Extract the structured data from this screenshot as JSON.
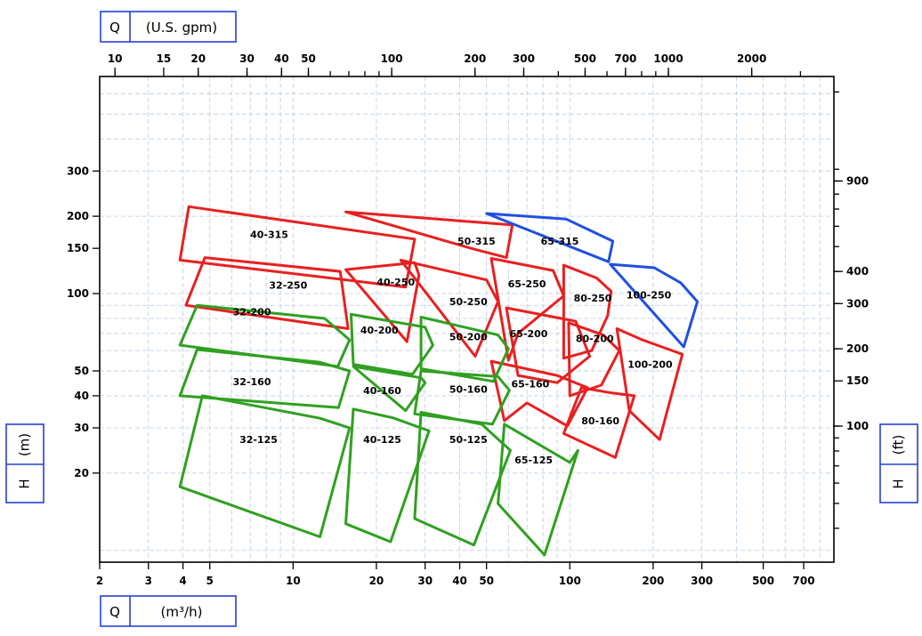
{
  "chart_data": {
    "type": "performance_range_chart",
    "title": "",
    "x_scale": "log",
    "y_scale": "log",
    "xlim": [
      2,
      900
    ],
    "ylim": [
      9,
      700
    ],
    "grid": true,
    "axes": {
      "bottom": {
        "symbol": "Q",
        "unit": "(m³/h)",
        "ticks": [
          2,
          3,
          4,
          5,
          10,
          20,
          30,
          40,
          50,
          100,
          200,
          300,
          500,
          700
        ]
      },
      "top": {
        "symbol": "Q",
        "unit": "(U.S. gpm)",
        "ticks": [
          10,
          15,
          20,
          30,
          40,
          50,
          100,
          200,
          300,
          500,
          700,
          1000,
          2000
        ]
      },
      "left": {
        "symbol": "H",
        "unit": "(m)",
        "ticks": [
          20,
          30,
          40,
          50,
          100,
          150,
          200,
          300
        ]
      },
      "right": {
        "symbol": "H",
        "unit": "(ft)",
        "ticks": [
          100,
          150,
          200,
          300,
          400,
          900
        ]
      }
    },
    "series": [
      {
        "color": "#e82020",
        "regions": [
          {
            "label": "40-315",
            "label_at": [
              8.2,
              170
            ],
            "corners": [
              [
                3.9,
                135
              ],
              [
                4.2,
                218
              ],
              [
                27.5,
                163
              ],
              [
                25.5,
                106
              ]
            ]
          },
          {
            "label": "50-315",
            "label_at": [
              46,
              160
            ],
            "corners": [
              [
                15.5,
                208
              ],
              [
                62,
                185
              ],
              [
                59,
                138
              ],
              [
                44,
                150
              ]
            ]
          },
          {
            "label": "32-250",
            "label_at": [
              9.6,
              108
            ],
            "corners": [
              [
                4.1,
                90
              ],
              [
                4.8,
                138
              ],
              [
                14.8,
                122
              ],
              [
                15.8,
                73
              ]
            ]
          },
          {
            "label": "40-250",
            "label_at": [
              23.5,
              111
            ],
            "corners": [
              [
                15.5,
                124
              ],
              [
                27.5,
                132
              ],
              [
                28.5,
                118
              ],
              [
                25.8,
                65
              ]
            ]
          },
          {
            "label": "50-250",
            "label_at": [
              43,
              93
            ],
            "corners": [
              [
                24.5,
                135
              ],
              [
                50,
                113
              ],
              [
                55,
                93
              ],
              [
                45.5,
                57
              ]
            ]
          },
          {
            "label": "65-250",
            "label_at": [
              70,
              109
            ],
            "corners": [
              [
                52,
                137
              ],
              [
                87,
                123
              ],
              [
                95,
                98
              ],
              [
                65,
                70
              ],
              [
                60,
                55
              ]
            ]
          },
          {
            "label": "80-250",
            "label_at": [
              121,
              96
            ],
            "corners": [
              [
                95,
                129
              ],
              [
                125,
                115
              ],
              [
                141,
                102
              ],
              [
                137,
                82
              ],
              [
                120,
                60
              ],
              [
                95,
                56
              ]
            ]
          },
          {
            "label": "65-200",
            "label_at": [
              71,
              70
            ],
            "corners": [
              [
                59,
                88
              ],
              [
                105,
                78
              ],
              [
                118,
                57
              ],
              [
                90,
                45
              ],
              [
                65,
                48
              ]
            ]
          },
          {
            "label": "80-200",
            "label_at": [
              123,
              67
            ],
            "corners": [
              [
                99,
                77
              ],
              [
                132,
                69
              ],
              [
                151,
                60
              ],
              [
                130,
                44
              ],
              [
                100,
                40
              ]
            ]
          },
          {
            "label": "100-200",
            "label_at": [
              195,
              53
            ],
            "corners": [
              [
                148,
                73
              ],
              [
                183,
                66
              ],
              [
                255,
                58
              ],
              [
                211,
                27
              ],
              [
                164,
                35
              ]
            ]
          },
          {
            "label": "65-160",
            "label_at": [
              72,
              44.5
            ],
            "corners": [
              [
                52,
                54.5
              ],
              [
                90,
                48
              ],
              [
                116,
                43
              ],
              [
                98,
                30.5
              ],
              [
                70,
                37.5
              ],
              [
                58,
                32
              ]
            ]
          },
          {
            "label": "80-160",
            "label_at": [
              129,
              32
            ],
            "corners": [
              [
                110,
                43
              ],
              [
                142,
                41
              ],
              [
                171,
                40
              ],
              [
                146,
                23
              ],
              [
                95,
                28.5
              ]
            ]
          }
        ]
      },
      {
        "color": "#2050e0",
        "regions": [
          {
            "label": "65-315",
            "label_at": [
              92,
              160
            ],
            "corners": [
              [
                50,
                205
              ],
              [
                97,
                195
              ],
              [
                143,
                160
              ],
              [
                138,
                133
              ]
            ]
          },
          {
            "label": "100-250",
            "label_at": [
              193,
              99
            ],
            "corners": [
              [
                140,
                130
              ],
              [
                202,
                126
              ],
              [
                252,
                110
              ],
              [
                289,
                93
              ],
              [
                258,
                62
              ]
            ]
          }
        ]
      },
      {
        "color": "#30a020",
        "regions": [
          {
            "label": "32-200",
            "label_at": [
              7.1,
              85
            ],
            "corners": [
              [
                3.9,
                63
              ],
              [
                4.5,
                90
              ],
              [
                13,
                80
              ],
              [
                16,
                66
              ],
              [
                14.5,
                52
              ]
            ]
          },
          {
            "label": "40-200",
            "label_at": [
              20.5,
              72
            ],
            "corners": [
              [
                16.2,
                83
              ],
              [
                30,
                74
              ],
              [
                32,
                63
              ],
              [
                27,
                48.5
              ],
              [
                16.5,
                53
              ]
            ]
          },
          {
            "label": "50-200",
            "label_at": [
              43,
              68
            ],
            "corners": [
              [
                29,
                81
              ],
              [
                55,
                69
              ],
              [
                60,
                61
              ],
              [
                53,
                45.5
              ],
              [
                29,
                51
              ]
            ]
          },
          {
            "label": "32-160",
            "label_at": [
              7.1,
              45.5
            ],
            "corners": [
              [
                3.9,
                40
              ],
              [
                4.5,
                60.5
              ],
              [
                12.5,
                54
              ],
              [
                16,
                50
              ],
              [
                14.6,
                36
              ]
            ]
          },
          {
            "label": "40-160",
            "label_at": [
              21,
              42
            ],
            "corners": [
              [
                16.5,
                52
              ],
              [
                29,
                47
              ],
              [
                30,
                45
              ],
              [
                25.5,
                35
              ]
            ]
          },
          {
            "label": "50-160",
            "label_at": [
              43,
              42.5
            ],
            "corners": [
              [
                29,
                50
              ],
              [
                55,
                47.5
              ],
              [
                60.5,
                42
              ],
              [
                52.5,
                31
              ],
              [
                27.5,
                34
              ]
            ]
          },
          {
            "label": "32-125",
            "label_at": [
              7.5,
              27
            ],
            "corners": [
              [
                3.9,
                17.7
              ],
              [
                4.7,
                40
              ],
              [
                12.5,
                32.7
              ],
              [
                16,
                30
              ],
              [
                12.5,
                11.3
              ]
            ]
          },
          {
            "label": "40-125",
            "label_at": [
              21,
              27
            ],
            "corners": [
              [
                16.5,
                35.5
              ],
              [
                23,
                32.8
              ],
              [
                31,
                29.2
              ],
              [
                22.5,
                10.8
              ],
              [
                15.5,
                12.7
              ]
            ]
          },
          {
            "label": "50-125",
            "label_at": [
              43,
              27
            ],
            "corners": [
              [
                29,
                34.5
              ],
              [
                48,
                31
              ],
              [
                61,
                24.5
              ],
              [
                45,
                10.5
              ],
              [
                27.5,
                13.3
              ]
            ]
          },
          {
            "label": "65-125",
            "label_at": [
              74,
              22.5
            ],
            "corners": [
              [
                58,
                31
              ],
              [
                100,
                22
              ],
              [
                107,
                24.5
              ],
              [
                81,
                9.6
              ],
              [
                55,
                15.2
              ]
            ]
          }
        ]
      }
    ]
  }
}
